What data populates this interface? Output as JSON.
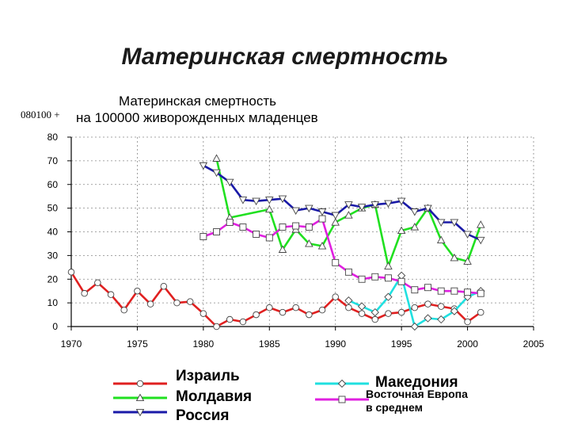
{
  "slide_title": "Материнская смертность",
  "code": "080100 +",
  "chart_data": {
    "type": "line",
    "title": "Материнская смертность",
    "subtitle": "на 100000 живорожденных младенцев",
    "xlim": [
      1970,
      2005
    ],
    "ylim": [
      0,
      80
    ],
    "x_ticks": [
      1970,
      1975,
      1980,
      1985,
      1990,
      1995,
      2000,
      2005
    ],
    "y_ticks": [
      0,
      10,
      20,
      30,
      40,
      50,
      60,
      70,
      80
    ],
    "grid": true,
    "legend_position": "bottom",
    "series": [
      {
        "name": "Израиль",
        "color": "#e02020",
        "marker": "circle",
        "x": [
          1970,
          1971,
          1972,
          1973,
          1974,
          1975,
          1976,
          1977,
          1978,
          1979,
          1980,
          1981,
          1982,
          1983,
          1984,
          1985,
          1986,
          1987,
          1988,
          1989,
          1990,
          1991,
          1992,
          1993,
          1994,
          1995,
          1996,
          1997,
          1998,
          1999,
          2000,
          2001
        ],
        "y": [
          23,
          14,
          18.5,
          13.5,
          7,
          15,
          9.5,
          17,
          10,
          10.5,
          5.5,
          0,
          3,
          2,
          5,
          8,
          6,
          8,
          5,
          7,
          12.5,
          8,
          5.5,
          3,
          5.5,
          6,
          8,
          9.5,
          8.5,
          7.5,
          2,
          6
        ]
      },
      {
        "name": "Молдавия",
        "color": "#20e020",
        "marker": "triangle-up",
        "x": [
          1981,
          1982,
          1985,
          1986,
          1987,
          1988,
          1989,
          1990,
          1991,
          1992,
          1993,
          1994,
          1995,
          1996,
          1997,
          1998,
          1999,
          2000,
          2001
        ],
        "y": [
          71,
          46,
          49.5,
          32.5,
          41,
          35,
          34,
          44,
          47,
          50,
          51.5,
          25.5,
          40.5,
          42,
          50,
          36.5,
          29,
          27.5,
          43
        ]
      },
      {
        "name": "Россия",
        "color": "#1a1aa8",
        "marker": "triangle-down",
        "x": [
          1980,
          1981,
          1982,
          1983,
          1984,
          1985,
          1986,
          1987,
          1988,
          1989,
          1990,
          1991,
          1992,
          1993,
          1994,
          1995,
          1996,
          1997,
          1998,
          1999,
          2000,
          2001
        ],
        "y": [
          68,
          65,
          61,
          53.5,
          53,
          53.5,
          54,
          49,
          50,
          48.5,
          47,
          51.5,
          50.5,
          51.5,
          52,
          53,
          48.5,
          50,
          44,
          44,
          39,
          36.5
        ]
      },
      {
        "name": "Македония",
        "color": "#20e0e0",
        "marker": "diamond",
        "x": [
          1991,
          1992,
          1993,
          1994,
          1995,
          1996,
          1997,
          1998,
          1999,
          2000,
          2001
        ],
        "y": [
          11,
          8.5,
          6,
          12.5,
          21.5,
          0,
          3.5,
          3,
          6.5,
          12.5,
          15
        ]
      },
      {
        "name": "Восточная Европа в среднем",
        "label_lines": [
          "Восточная Европа",
          "в среднем"
        ],
        "color": "#e020e0",
        "marker": "square",
        "x": [
          1980,
          1981,
          1982,
          1983,
          1984,
          1985,
          1986,
          1987,
          1988,
          1989,
          1990,
          1991,
          1992,
          1993,
          1994,
          1995,
          1996,
          1997,
          1998,
          1999,
          2000,
          2001
        ],
        "y": [
          38,
          40,
          44,
          42,
          39,
          37.5,
          42,
          42.5,
          42,
          45.5,
          27,
          23,
          20,
          21,
          20.5,
          19,
          15.5,
          16.5,
          15,
          15,
          14.5,
          14
        ]
      }
    ]
  }
}
